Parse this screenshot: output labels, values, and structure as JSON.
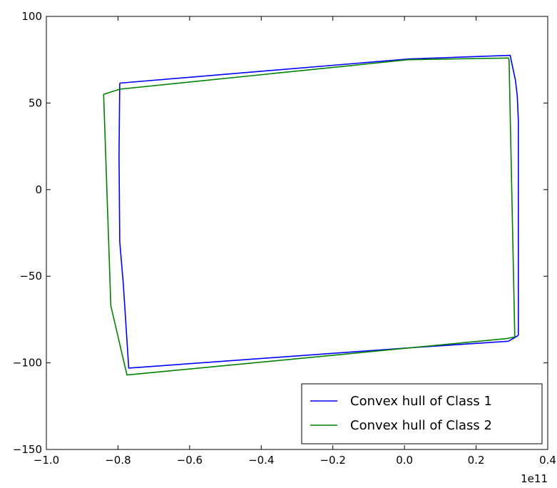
{
  "chart_data": {
    "type": "line",
    "title": "",
    "xlabel": "",
    "ylabel": "",
    "xlim": [
      -1.0,
      0.4
    ],
    "ylim": [
      -150,
      100
    ],
    "x_ticks": [
      -1.0,
      -0.8,
      -0.6,
      -0.4,
      -0.2,
      0.0,
      0.2,
      0.4
    ],
    "x_tick_labels": [
      "−1.0",
      "−0.8",
      "−0.6",
      "−0.4",
      "−0.2",
      "0.0",
      "0.2",
      "0.4"
    ],
    "y_ticks": [
      100,
      50,
      0,
      -50,
      -100,
      -150
    ],
    "y_tick_labels": [
      "100",
      "50",
      "0",
      "−50",
      "−100",
      "−150"
    ],
    "x_offset_label": "1e11",
    "grid": false,
    "legend_position": "lower-right",
    "series": [
      {
        "name": "Convex hull of Class 1",
        "color": "#0000ff",
        "x": [
          -0.795,
          0.015,
          0.295,
          0.31,
          0.315,
          0.318,
          0.318,
          0.315,
          0.29,
          0.0,
          -0.77,
          -0.785,
          -0.795,
          -0.797,
          -0.795
        ],
        "y": [
          61.5,
          75.5,
          77.5,
          63.0,
          54.0,
          40.0,
          -84.0,
          -84.5,
          -87.5,
          -91.5,
          -103.0,
          -55.0,
          -30.0,
          20.0,
          61.5
        ]
      },
      {
        "name": "Convex hull of Class 2",
        "color": "#008000",
        "x": [
          -0.795,
          0.01,
          0.29,
          0.292,
          0.308,
          0.285,
          -0.775,
          -0.82,
          -0.84,
          -0.795
        ],
        "y": [
          58.0,
          75.0,
          76.0,
          75.0,
          -85.0,
          -86.0,
          -107.0,
          -67.0,
          55.0,
          58.0
        ]
      }
    ]
  }
}
